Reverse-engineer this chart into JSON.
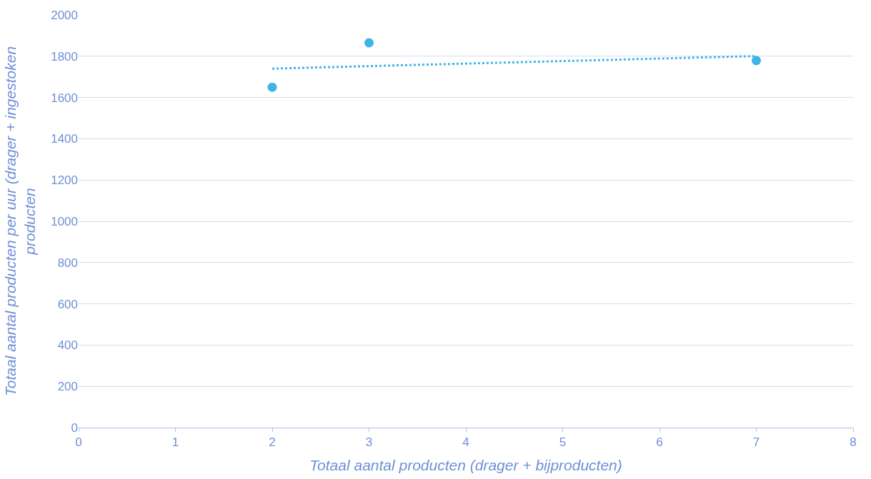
{
  "chart_data": {
    "type": "scatter",
    "xlabel": "Totaal aantal producten (drager + bijproducten)",
    "ylabel": "Totaal aantal producten per uur (drager + ingestoken\nproducten",
    "x": [
      2,
      3,
      7
    ],
    "series": [
      {
        "color": "#41b4e6",
        "values": [
          1650,
          1865,
          1779
        ],
        "marker": "circle"
      },
      {
        "type": "line",
        "x": [
          2,
          7
        ],
        "color": "#41b4e6",
        "values": [
          1740,
          1801
        ],
        "line_style": "dotted",
        "marker": "none"
      }
    ],
    "xlim": [
      0,
      8
    ],
    "xticks": [
      0,
      1,
      2,
      3,
      4,
      5,
      6,
      7,
      8
    ],
    "ylim": [
      0,
      2000
    ],
    "yticks": [
      0,
      200,
      400,
      600,
      800,
      1000,
      1200,
      1400,
      1600,
      1800,
      2000
    ],
    "grid": "y"
  }
}
